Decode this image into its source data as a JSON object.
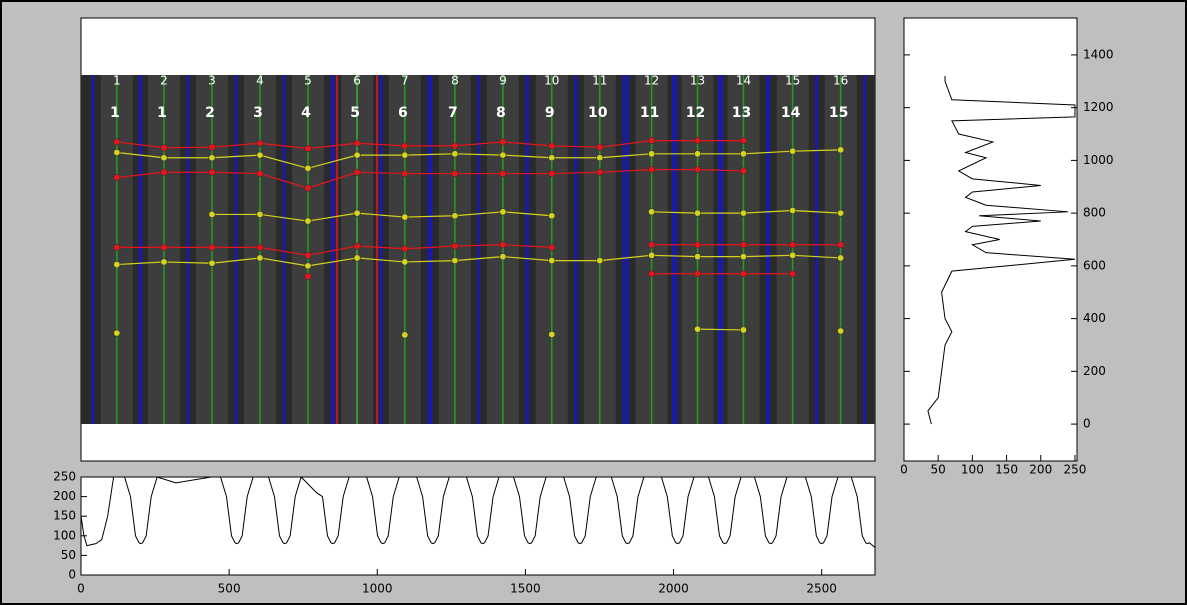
{
  "chart_data": [
    {
      "type": "gel",
      "x": [
        121,
        280,
        442,
        604,
        766,
        932,
        1093,
        1262,
        1424,
        1589,
        1751,
        1926,
        2081,
        2236,
        2402,
        2564
      ],
      "lane_labels": [
        "1",
        "2",
        "3",
        "4",
        "5",
        "6",
        "7",
        "8",
        "9",
        "10",
        "11",
        "12",
        "13",
        "14",
        "15",
        "16"
      ],
      "lane_numbers": [
        "1",
        "1",
        "2",
        "3",
        "4",
        "5",
        "6",
        "7",
        "8",
        "9",
        "10",
        "11",
        "12",
        "13",
        "14",
        "15"
      ],
      "xlim": [
        0,
        2680
      ],
      "ylim": [
        -140,
        1540
      ],
      "series": [
        {
          "color": "#e8141c",
          "values": [
            1070,
            1048,
            1050,
            1065,
            1045,
            1065,
            1055,
            1055,
            1070,
            1055,
            1050,
            1075,
            1075,
            1075,
            null,
            null
          ]
        },
        {
          "color": "#d4d41e",
          "values": [
            1030,
            1010,
            1010,
            1020,
            970,
            1020,
            1020,
            1025,
            1020,
            1010,
            1010,
            1025,
            1025,
            1025,
            1035,
            1040
          ]
        },
        {
          "color": "#e8141c",
          "values": [
            935,
            955,
            955,
            950,
            895,
            955,
            950,
            950,
            950,
            950,
            955,
            965,
            965,
            960,
            null,
            null
          ]
        },
        {
          "color": "#d4d41e",
          "values": [
            null,
            null,
            795,
            795,
            770,
            800,
            785,
            790,
            805,
            790,
            null,
            805,
            800,
            800,
            810,
            800
          ]
        },
        {
          "color": "#e8141c",
          "values": [
            670,
            670,
            670,
            670,
            640,
            675,
            665,
            675,
            680,
            670,
            null,
            680,
            680,
            680,
            680,
            680
          ]
        },
        {
          "color": "#d4d41e",
          "values": [
            605,
            615,
            610,
            630,
            600,
            630,
            615,
            620,
            635,
            620,
            620,
            640,
            635,
            635,
            640,
            630
          ]
        },
        {
          "color": "#e8141c",
          "values": [
            null,
            null,
            null,
            null,
            560,
            null,
            null,
            null,
            null,
            null,
            null,
            570,
            570,
            570,
            570,
            null
          ]
        },
        {
          "color": "#d4d41e",
          "values": [
            345,
            null,
            null,
            null,
            null,
            null,
            338,
            null,
            null,
            340,
            null,
            null,
            360,
            357,
            null,
            353
          ]
        }
      ]
    },
    {
      "type": "vline",
      "color": "#000000",
      "y": [
        0,
        50,
        100,
        200,
        300,
        350,
        400,
        500,
        580,
        625,
        650,
        680,
        700,
        730,
        750,
        770,
        790,
        805,
        830,
        860,
        880,
        905,
        930,
        960,
        1010,
        1030,
        1070,
        1100,
        1150,
        1165,
        1180,
        1200,
        1210,
        1230,
        1300,
        1320
      ],
      "values": [
        40,
        35,
        50,
        55,
        60,
        70,
        60,
        55,
        70,
        250,
        120,
        100,
        140,
        90,
        100,
        200,
        110,
        240,
        120,
        90,
        100,
        200,
        100,
        80,
        120,
        90,
        130,
        80,
        70,
        250,
        250,
        250,
        250,
        70,
        60,
        60
      ],
      "xlim": [
        0,
        253
      ],
      "ylim": [
        -140,
        1540
      ],
      "xticks": [
        0,
        50,
        100,
        150,
        200,
        250
      ],
      "yticks": [
        0,
        200,
        400,
        600,
        800,
        1000,
        1200,
        1400
      ]
    },
    {
      "type": "line",
      "color": "#000000",
      "x": [
        0,
        10,
        20,
        50,
        70,
        90,
        110,
        147,
        167,
        184,
        196,
        202,
        208,
        220,
        237,
        257,
        320,
        440,
        471,
        491,
        508,
        520,
        526,
        532,
        544,
        561,
        581,
        633,
        653,
        670,
        682,
        688,
        694,
        706,
        723,
        743,
        795,
        815,
        832,
        844,
        850,
        856,
        868,
        885,
        905,
        964,
        984,
        1001,
        1013,
        1019,
        1025,
        1037,
        1054,
        1074,
        1133,
        1153,
        1170,
        1182,
        1188,
        1194,
        1206,
        1223,
        1243,
        1301,
        1321,
        1338,
        1350,
        1356,
        1362,
        1374,
        1391,
        1411,
        1460,
        1480,
        1497,
        1509,
        1515,
        1521,
        1533,
        1550,
        1570,
        1629,
        1649,
        1666,
        1678,
        1684,
        1690,
        1702,
        1719,
        1739,
        1790,
        1810,
        1827,
        1839,
        1845,
        1851,
        1863,
        1880,
        1900,
        1959,
        1979,
        1996,
        2008,
        2014,
        2020,
        2032,
        2049,
        2069,
        2118,
        2138,
        2155,
        2167,
        2173,
        2179,
        2191,
        2208,
        2228,
        2273,
        2293,
        2310,
        2322,
        2328,
        2334,
        2346,
        2363,
        2383,
        2445,
        2465,
        2482,
        2494,
        2500,
        2506,
        2518,
        2535,
        2555,
        2600,
        2620,
        2637,
        2649,
        2655,
        2661,
        2673,
        2680
      ],
      "values": [
        150,
        100,
        75,
        80,
        90,
        150,
        250,
        250,
        200,
        100,
        82,
        80,
        82,
        100,
        200,
        250,
        235,
        250,
        250,
        200,
        100,
        82,
        80,
        82,
        100,
        200,
        250,
        250,
        200,
        100,
        82,
        80,
        82,
        100,
        200,
        250,
        210,
        200,
        100,
        82,
        80,
        82,
        100,
        200,
        250,
        250,
        200,
        100,
        82,
        80,
        82,
        100,
        200,
        250,
        250,
        200,
        100,
        82,
        80,
        82,
        100,
        200,
        250,
        250,
        200,
        100,
        82,
        80,
        82,
        100,
        200,
        250,
        250,
        200,
        100,
        82,
        80,
        82,
        100,
        200,
        250,
        250,
        200,
        100,
        82,
        80,
        82,
        100,
        200,
        250,
        250,
        200,
        100,
        82,
        80,
        82,
        100,
        200,
        250,
        250,
        200,
        100,
        82,
        80,
        82,
        100,
        200,
        250,
        250,
        200,
        100,
        82,
        80,
        82,
        100,
        200,
        250,
        250,
        200,
        100,
        82,
        80,
        82,
        100,
        200,
        250,
        250,
        200,
        100,
        82,
        80,
        82,
        100,
        200,
        250,
        250,
        200,
        100,
        82,
        80,
        82,
        75,
        70
      ],
      "xlim": [
        0,
        2680
      ],
      "ylim": [
        0,
        250
      ],
      "xticks": [
        0,
        500,
        1000,
        1500,
        2000,
        2500
      ],
      "yticks": [
        0,
        50,
        100,
        150,
        200,
        250
      ]
    }
  ]
}
